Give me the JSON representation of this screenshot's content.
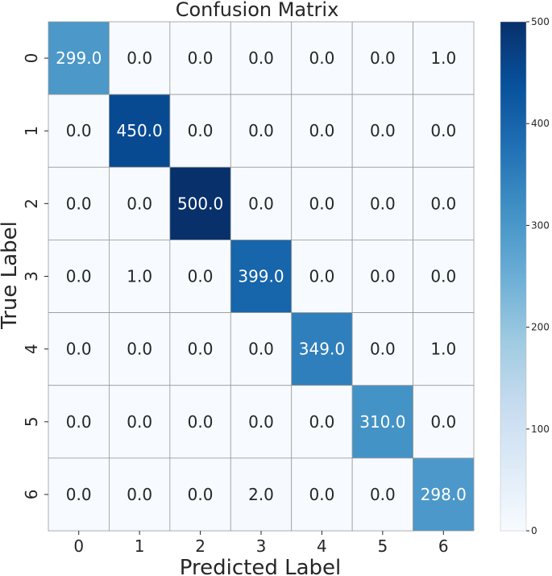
{
  "chart_data": {
    "type": "heatmap",
    "title": "Confusion Matrix",
    "xlabel": "Predicted Label",
    "ylabel": "True Label",
    "x_categories": [
      "0",
      "1",
      "2",
      "3",
      "4",
      "5",
      "6"
    ],
    "y_categories": [
      "0",
      "1",
      "2",
      "3",
      "4",
      "5",
      "6"
    ],
    "values": [
      [
        299,
        0,
        0,
        0,
        0,
        0,
        1
      ],
      [
        0,
        450,
        0,
        0,
        0,
        0,
        0
      ],
      [
        0,
        0,
        500,
        0,
        0,
        0,
        0
      ],
      [
        0,
        1,
        0,
        399,
        0,
        0,
        0
      ],
      [
        0,
        0,
        0,
        0,
        349,
        0,
        1
      ],
      [
        0,
        0,
        0,
        0,
        0,
        310,
        0
      ],
      [
        0,
        0,
        0,
        2,
        0,
        0,
        298
      ]
    ],
    "cell_labels": [
      [
        "299.0",
        "0.0",
        "0.0",
        "0.0",
        "0.0",
        "0.0",
        "1.0"
      ],
      [
        "0.0",
        "450.0",
        "0.0",
        "0.0",
        "0.0",
        "0.0",
        "0.0"
      ],
      [
        "0.0",
        "0.0",
        "500.0",
        "0.0",
        "0.0",
        "0.0",
        "0.0"
      ],
      [
        "0.0",
        "1.0",
        "0.0",
        "399.0",
        "0.0",
        "0.0",
        "0.0"
      ],
      [
        "0.0",
        "0.0",
        "0.0",
        "0.0",
        "349.0",
        "0.0",
        "1.0"
      ],
      [
        "0.0",
        "0.0",
        "0.0",
        "0.0",
        "0.0",
        "310.0",
        "0.0"
      ],
      [
        "0.0",
        "0.0",
        "0.0",
        "2.0",
        "0.0",
        "0.0",
        "298.0"
      ]
    ],
    "colormap": "Blues",
    "colorbar_range": [
      0,
      500
    ],
    "colorbar_ticks": [
      "0",
      "100",
      "200",
      "300",
      "400",
      "500"
    ],
    "colorbar_tick_values": [
      0,
      100,
      200,
      300,
      400,
      500
    ],
    "grid": true,
    "legend": "colorbar-right"
  }
}
